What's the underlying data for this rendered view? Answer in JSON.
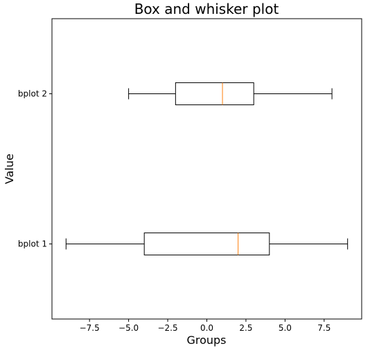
{
  "chart_data": {
    "type": "boxplot",
    "orientation": "horizontal",
    "title": "Box and whisker plot",
    "xlabel": "Groups",
    "ylabel": "Value",
    "xlim": [
      -9.9,
      9.9
    ],
    "xticks": [
      -7.5,
      -5.0,
      -2.5,
      0.0,
      2.5,
      5.0,
      7.5
    ],
    "xtick_labels": [
      "−7.5",
      "−5.0",
      "−2.5",
      "0.0",
      "2.5",
      "5.0",
      "7.5"
    ],
    "categories": [
      "bplot 1",
      "bplot 2"
    ],
    "series": [
      {
        "category": "bplot 1",
        "whisker_low": -9,
        "q1": -4,
        "median": 2,
        "q3": 4,
        "whisker_high": 9
      },
      {
        "category": "bplot 2",
        "whisker_low": -5,
        "q1": -2,
        "median": 1,
        "q3": 3,
        "whisker_high": 8
      }
    ],
    "grid": false,
    "colors": {
      "box": "#000000",
      "median": "#ff7f0e",
      "whisker": "#000000",
      "axes": "#000000"
    }
  }
}
